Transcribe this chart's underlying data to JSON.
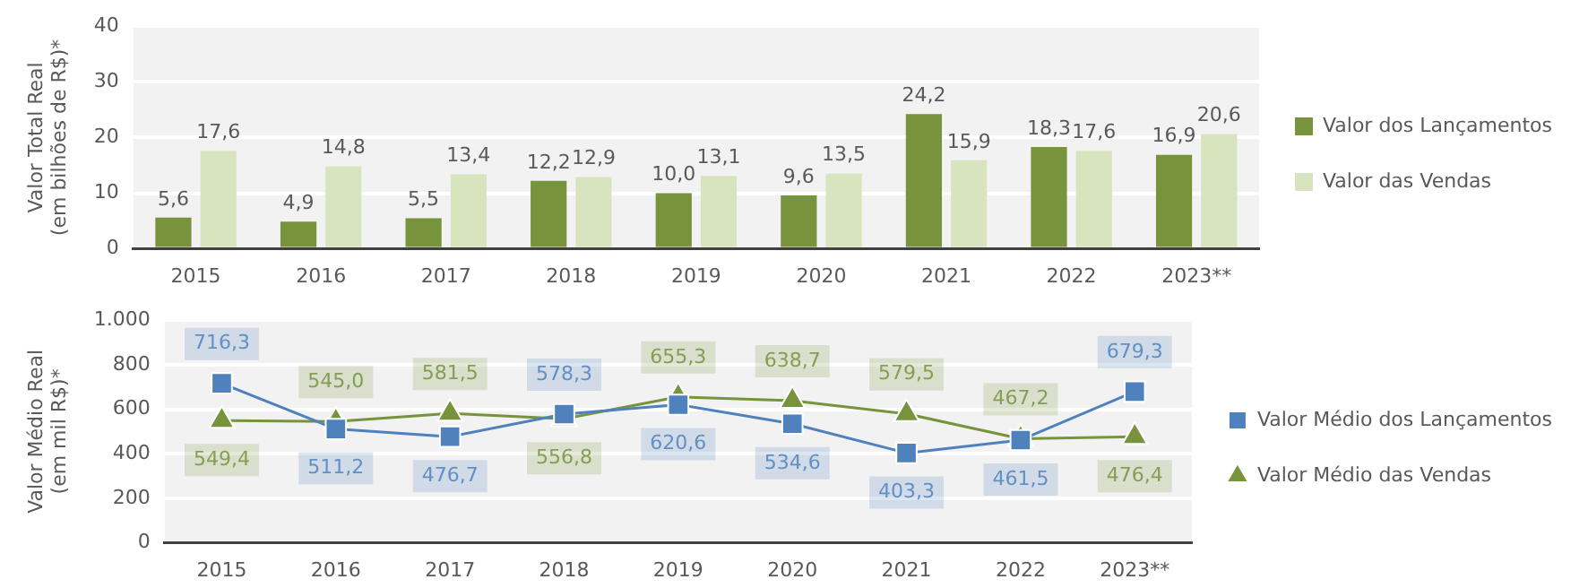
{
  "chart_data": [
    {
      "type": "bar",
      "ylabel": "Valor Total Real\n(em bilhões de R$)*",
      "categories": [
        "2015",
        "2016",
        "2017",
        "2018",
        "2019",
        "2020",
        "2021",
        "2022",
        "2023**"
      ],
      "series": [
        {
          "name": "Valor dos Lançamentos",
          "color": "#77933c",
          "values": [
            5.6,
            4.9,
            5.5,
            12.2,
            10.0,
            9.6,
            24.2,
            18.3,
            16.9
          ],
          "value_labels": [
            "5,6",
            "4,9",
            "5,5",
            "12,2",
            "10,0",
            "9,6",
            "24,2",
            "18,3",
            "16,9"
          ]
        },
        {
          "name": "Valor das Vendas",
          "color": "#d7e4bd",
          "values": [
            17.6,
            14.8,
            13.4,
            12.9,
            13.1,
            13.5,
            15.9,
            17.6,
            20.6
          ],
          "value_labels": [
            "17,6",
            "14,8",
            "13,4",
            "12,9",
            "13,1",
            "13,5",
            "15,9",
            "17,6",
            "20,6"
          ]
        }
      ],
      "ylim": [
        0,
        40
      ],
      "yticks": [
        0,
        10,
        20,
        30,
        40
      ],
      "grid": "y",
      "legend": "right"
    },
    {
      "type": "line",
      "ylabel": "Valor Médio Real\n(em mil R$)*",
      "categories": [
        "2015",
        "2016",
        "2017",
        "2018",
        "2019",
        "2020",
        "2021",
        "2022",
        "2023**"
      ],
      "series": [
        {
          "name": "Valor Médio dos Lançamentos",
          "color": "#4f81bd",
          "marker": "square",
          "values": [
            716.3,
            511.2,
            476.7,
            578.3,
            620.6,
            534.6,
            403.3,
            461.5,
            679.3
          ],
          "value_labels": [
            "716,3",
            "511,2",
            "476,7",
            "578,3",
            "620,6",
            "534,6",
            "403,3",
            "461,5",
            "679,3"
          ]
        },
        {
          "name": "Valor Médio das Vendas",
          "color": "#77933c",
          "marker": "triangle",
          "values": [
            549.4,
            545.0,
            581.5,
            556.8,
            655.3,
            638.7,
            579.5,
            467.2,
            476.4
          ],
          "value_labels": [
            "549,4",
            "545,0",
            "581,5",
            "556,8",
            "655,3",
            "638,7",
            "579,5",
            "467,2",
            "476,4"
          ]
        }
      ],
      "ylim": [
        0,
        1000
      ],
      "yticks": [
        0,
        200,
        400,
        600,
        800,
        {
          "value": 1000,
          "label": "1.000"
        }
      ],
      "grid": "y",
      "legend": "right"
    }
  ]
}
